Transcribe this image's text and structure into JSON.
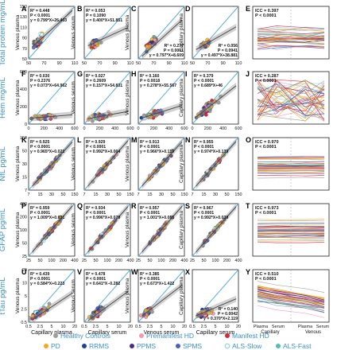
{
  "figure": {
    "row_labels": [
      "Total protein mg/mL",
      "Hem mg/mL",
      "NfL pg/mL",
      "GFAP pg/mL",
      "tTau pg/mL"
    ],
    "profile_axis": {
      "groups": [
        "Capillary",
        "Venous"
      ],
      "ticks": [
        "Plasma",
        "Serum",
        "Plasma",
        "Serum"
      ]
    },
    "legend_row1": [
      {
        "label": "Healthy Controls",
        "color": "#9e9e9e",
        "style": "dot"
      },
      {
        "label": "Premanifest HD",
        "color": "#f39ab1",
        "style": "dot"
      },
      {
        "label": "Manifest HD",
        "color": "#d7263d",
        "style": "dot"
      }
    ],
    "legend_row2": [
      {
        "label": "PD",
        "color": "#f5a623",
        "style": "dot"
      },
      {
        "label": "RRMS",
        "color": "#1a3f9c",
        "style": "dot"
      },
      {
        "label": "PPMS",
        "color": "#4b2a86",
        "style": "dot"
      },
      {
        "label": "SPMS",
        "color": "#4a5fc1",
        "style": "dot"
      },
      {
        "label": "ALS-Slow",
        "color": "#8fd3e8",
        "style": "ring"
      },
      {
        "label": "ALS-Fast",
        "color": "#4fc1b0",
        "style": "dot"
      }
    ]
  },
  "chart_data": [
    {
      "panel": "A",
      "type": "scatter",
      "row": 0,
      "col": 0,
      "xlabel": "",
      "ylabel": "Venous plasma",
      "xlim": [
        50,
        150
      ],
      "ylim": [
        50,
        150
      ],
      "xticks": [
        "50",
        "70",
        "90",
        "110"
      ],
      "yticks": [
        "50",
        "70",
        "90",
        "110",
        "130",
        "150"
      ],
      "stats": [
        "R² = 0.448",
        "P < 0.0001",
        "y = 0.799*X+26.403"
      ],
      "stats_pos": "top-left",
      "slope": 0.799,
      "intercept": 26.403,
      "center": [
        72,
        85
      ],
      "spread": [
        9,
        12
      ]
    },
    {
      "panel": "B",
      "type": "scatter",
      "row": 0,
      "col": 1,
      "xlabel": "",
      "ylabel": "Venous serum",
      "xlim": [
        50,
        150
      ],
      "ylim": [
        50,
        150
      ],
      "xticks": [
        "50",
        "70",
        "90",
        "110"
      ],
      "yticks": [],
      "stats": [
        "R² = 0.053",
        "P = 0.1090",
        "y = 0.400*X+51.851"
      ],
      "stats_pos": "top-left",
      "slope": 0.4,
      "intercept": 51.851,
      "center": [
        75,
        80
      ],
      "spread": [
        9,
        9
      ]
    },
    {
      "panel": "C",
      "type": "scatter",
      "row": 0,
      "col": 2,
      "xlabel": "",
      "ylabel": "Venous plasma",
      "xlim": [
        50,
        150
      ],
      "ylim": [
        50,
        150
      ],
      "xticks": [
        "50",
        "70",
        "90",
        "110"
      ],
      "yticks": [],
      "stats": [
        "R² = 0.277",
        "P = 0.0001",
        "y = 0.797*X+8.609"
      ],
      "stats_pos": "bottom-right",
      "slope": 0.797,
      "intercept": 8.609,
      "center": [
        80,
        80
      ],
      "spread": [
        10,
        11
      ]
    },
    {
      "panel": "D",
      "type": "scatter",
      "row": 0,
      "col": 3,
      "xlabel": "",
      "ylabel": "Capillary plasma",
      "xlim": [
        50,
        150
      ],
      "ylim": [
        50,
        150
      ],
      "xticks": [
        "50",
        "70",
        "90",
        "110"
      ],
      "yticks": [],
      "stats": [
        "R² = 0.056",
        "P = 0.0941",
        "y = 0.497*X+38.881"
      ],
      "stats_pos": "bottom-right",
      "slope": 0.497,
      "intercept": 38.881,
      "center": [
        78,
        78
      ],
      "spread": [
        8,
        8
      ]
    },
    {
      "panel": "E",
      "type": "line",
      "row": 0,
      "col": 4,
      "stats": [
        "ICC = 0.397",
        "P < 0.0001"
      ],
      "trend": "flat",
      "spread": 0.28,
      "center": 0.6
    },
    {
      "panel": "F",
      "type": "scatter",
      "row": 1,
      "col": 0,
      "xlabel": "",
      "ylabel": "Venous plasma",
      "xlim": [
        0,
        600
      ],
      "ylim": [
        0,
        600
      ],
      "xticks": [
        "0",
        "200",
        "400",
        "600"
      ],
      "yticks": [
        "0",
        "200",
        "400",
        "600"
      ],
      "stats": [
        "R² = 0.030",
        "P = 0.2376",
        "y = 0.073*X+64.962"
      ],
      "stats_pos": "top-left",
      "slope": 0.073,
      "intercept": 64.962,
      "center": [
        220,
        80
      ],
      "spread": [
        130,
        40
      ]
    },
    {
      "panel": "G",
      "type": "scatter",
      "row": 1,
      "col": 1,
      "xlabel": "",
      "ylabel": "Venous serum",
      "xlim": [
        0,
        600
      ],
      "ylim": [
        0,
        600
      ],
      "xticks": [
        "0",
        "200",
        "400",
        "600"
      ],
      "yticks": [],
      "stats": [
        "R² = 0.027",
        "P = 0.2609",
        "y = 0.157*X+54.831"
      ],
      "stats_pos": "top-left",
      "slope": 0.157,
      "intercept": 54.831,
      "center": [
        220,
        90
      ],
      "spread": [
        130,
        50
      ]
    },
    {
      "panel": "H",
      "type": "scatter",
      "row": 1,
      "col": 2,
      "xlabel": "",
      "ylabel": "Venous plasma",
      "xlim": [
        0,
        600
      ],
      "ylim": [
        0,
        600
      ],
      "xticks": [
        "0",
        "200",
        "400",
        "600"
      ],
      "yticks": [],
      "stats": [
        "R² = 0.160",
        "P = 0.0018",
        "y = 0.278*X+55.567"
      ],
      "stats_pos": "top-left",
      "slope": 0.278,
      "intercept": 55.567,
      "center": [
        200,
        110
      ],
      "spread": [
        110,
        50
      ]
    },
    {
      "panel": "I",
      "type": "scatter",
      "row": 1,
      "col": 3,
      "xlabel": "",
      "ylabel": "Capillary plasma",
      "xlim": [
        0,
        600
      ],
      "ylim": [
        0,
        600
      ],
      "xticks": [
        "0",
        "200",
        "400",
        "600"
      ],
      "yticks": [],
      "stats": [
        "R² = 0.379",
        "P < 0.0001",
        "y = 0.689*X+46"
      ],
      "stats_pos": "top-left",
      "slope": 0.689,
      "intercept": 46,
      "center": [
        200,
        180
      ],
      "spread": [
        110,
        80
      ]
    },
    {
      "panel": "J",
      "type": "line",
      "row": 1,
      "col": 4,
      "stats": [
        "ICC = 0.287",
        "P < 0.0001"
      ],
      "trend": "mixed",
      "spread": 0.4,
      "center": 0.45
    },
    {
      "panel": "K",
      "type": "scatter",
      "row": 2,
      "col": 0,
      "xlabel": "",
      "ylabel": "Venous plasma",
      "xlim": [
        0,
        150
      ],
      "ylim": [
        0,
        150
      ],
      "xticks": [
        "7",
        "15",
        "30",
        "50",
        "150"
      ],
      "yticks": [
        "7",
        "15",
        "30",
        "50",
        "150"
      ],
      "stats": [
        "R² = 0.925",
        "P < 0.0001",
        "y = 0.965*X+0.021"
      ],
      "stats_pos": "top-left",
      "slope": 0.965,
      "intercept": 0.021,
      "center": [
        65,
        65
      ],
      "spread": [
        35,
        35
      ]
    },
    {
      "panel": "L",
      "type": "scatter",
      "row": 2,
      "col": 1,
      "xlabel": "",
      "ylabel": "Venous serum",
      "xlim": [
        0,
        150
      ],
      "ylim": [
        0,
        150
      ],
      "xticks": [
        "7",
        "15",
        "30",
        "50",
        "150"
      ],
      "yticks": [],
      "stats": [
        "R² = 0.929",
        "P < 0.0001",
        "y = 0.992*X+0.004"
      ],
      "stats_pos": "top-left",
      "slope": 0.992,
      "intercept": 0.004,
      "center": [
        65,
        65
      ],
      "spread": [
        35,
        35
      ]
    },
    {
      "panel": "M",
      "type": "scatter",
      "row": 2,
      "col": 2,
      "xlabel": "",
      "ylabel": "Venous plasma",
      "xlim": [
        0,
        150
      ],
      "ylim": [
        0,
        150
      ],
      "xticks": [
        "7",
        "15",
        "30",
        "50",
        "150"
      ],
      "yticks": [],
      "stats": [
        "R² = 0.913",
        "P < 0.0001",
        "y = 0.966*X+0.119"
      ],
      "stats_pos": "top-left",
      "slope": 0.966,
      "intercept": 0.119,
      "center": [
        65,
        65
      ],
      "spread": [
        35,
        35
      ]
    },
    {
      "panel": "N",
      "type": "scatter",
      "row": 2,
      "col": 3,
      "xlabel": "",
      "ylabel": "Capillary plasma",
      "xlim": [
        0,
        150
      ],
      "ylim": [
        0,
        150
      ],
      "xticks": [
        "7",
        "15",
        "30",
        "50",
        "150"
      ],
      "yticks": [],
      "stats": [
        "R² = 0.955",
        "P < 0.0001",
        "y = 0.974*X+0.139"
      ],
      "stats_pos": "top-left",
      "slope": 0.974,
      "intercept": 0.139,
      "center": [
        65,
        65
      ],
      "spread": [
        35,
        35
      ]
    },
    {
      "panel": "O",
      "type": "line",
      "row": 2,
      "col": 4,
      "stats": [
        "ICC = 0.970",
        "P < 0.0001"
      ],
      "trend": "parallel",
      "spread": 0.32,
      "center": 0.55
    },
    {
      "panel": "P",
      "type": "scatter",
      "row": 3,
      "col": 0,
      "xlabel": "",
      "ylabel": "Venous plasma",
      "xlim": [
        0,
        400
      ],
      "ylim": [
        0,
        400
      ],
      "xticks": [
        "25",
        "50",
        "100",
        "200",
        "400"
      ],
      "yticks": [
        "25",
        "50",
        "100",
        "200",
        "400"
      ],
      "stats": [
        "R² = 0.959",
        "P < 0.0001",
        "y = 1.009*X+0.031"
      ],
      "stats_pos": "top-left",
      "slope": 1.009,
      "intercept": 0.031,
      "center": [
        180,
        180
      ],
      "spread": [
        90,
        90
      ]
    },
    {
      "panel": "Q",
      "type": "scatter",
      "row": 3,
      "col": 1,
      "xlabel": "",
      "ylabel": "Venous serum",
      "xlim": [
        0,
        400
      ],
      "ylim": [
        0,
        400
      ],
      "xticks": [
        "25",
        "50",
        "100",
        "200",
        "400"
      ],
      "yticks": [],
      "stats": [
        "R² = 0.934",
        "P < 0.0001",
        "y = 0.996*X+0.079"
      ],
      "stats_pos": "top-left",
      "slope": 0.996,
      "intercept": 0.079,
      "center": [
        180,
        180
      ],
      "spread": [
        90,
        90
      ]
    },
    {
      "panel": "R",
      "type": "scatter",
      "row": 3,
      "col": 2,
      "xlabel": "",
      "ylabel": "Venous plasma",
      "xlim": [
        0,
        400
      ],
      "ylim": [
        0,
        400
      ],
      "xticks": [
        "25",
        "50",
        "100",
        "200",
        "400"
      ],
      "yticks": [],
      "stats": [
        "R² = 0.957",
        "P < 0.0001",
        "y = 1.001*X+0.055"
      ],
      "stats_pos": "top-left",
      "slope": 1.001,
      "intercept": 0.055,
      "center": [
        180,
        180
      ],
      "spread": [
        90,
        90
      ]
    },
    {
      "panel": "S",
      "type": "scatter",
      "row": 3,
      "col": 3,
      "xlabel": "",
      "ylabel": "Capillary plasma",
      "xlim": [
        0,
        400
      ],
      "ylim": [
        0,
        400
      ],
      "xticks": [
        "25",
        "50",
        "100",
        "200",
        "400"
      ],
      "yticks": [],
      "stats": [
        "R² = 0.967",
        "P < 0.0001",
        "y = 0.992*X+0.039"
      ],
      "stats_pos": "top-left",
      "slope": 0.992,
      "intercept": 0.039,
      "center": [
        180,
        180
      ],
      "spread": [
        90,
        90
      ]
    },
    {
      "panel": "T",
      "type": "line",
      "row": 3,
      "col": 4,
      "stats": [
        "ICC = 0.973",
        "P < 0.0001"
      ],
      "trend": "parallel",
      "spread": 0.32,
      "center": 0.55
    },
    {
      "panel": "U",
      "type": "scatter",
      "row": 4,
      "col": 0,
      "xlabel": "Capillary plasma",
      "ylabel": "Venous plasma",
      "xlim": [
        0.5,
        20
      ],
      "ylim": [
        0.5,
        20
      ],
      "xticks": [
        "0.5",
        "2.5",
        "5",
        "10",
        "20"
      ],
      "yticks": [
        "0.5",
        "2.5",
        "5",
        "10",
        "20"
      ],
      "stats": [
        "R² = 0.439",
        "P < 0.0001",
        "y = 0.584*X+0.223"
      ],
      "stats_pos": "top-left",
      "slope": 0.584,
      "intercept": 0.223,
      "center": [
        5,
        4
      ],
      "spread": [
        3,
        2
      ]
    },
    {
      "panel": "V",
      "type": "scatter",
      "row": 4,
      "col": 1,
      "xlabel": "Capillary serum",
      "ylabel": "Venous serum",
      "xlim": [
        0.5,
        20
      ],
      "ylim": [
        0.5,
        20
      ],
      "xticks": [
        "0.5",
        "2.5",
        "5",
        "10",
        "20"
      ],
      "yticks": [],
      "stats": [
        "R² = 0.478",
        "P < 0.0001",
        "y = 0.641*X−0.282"
      ],
      "stats_pos": "top-left",
      "slope": 0.641,
      "intercept": -0.282,
      "center": [
        6,
        4
      ],
      "spread": [
        3,
        2
      ]
    },
    {
      "panel": "W",
      "type": "scatter",
      "row": 4,
      "col": 2,
      "xlabel": "Venous serum",
      "ylabel": "Venous plasma",
      "xlim": [
        0.5,
        20
      ],
      "ylim": [
        0.5,
        20
      ],
      "xticks": [
        "0.5",
        "2.5",
        "5",
        "10",
        "20"
      ],
      "yticks": [],
      "stats": [
        "R² = 0.385",
        "P < 0.0001",
        "y = 0.673*X+1.422"
      ],
      "stats_pos": "top-left",
      "slope": 0.673,
      "intercept": 1.422,
      "center": [
        4,
        4
      ],
      "spread": [
        2,
        2
      ]
    },
    {
      "panel": "X",
      "type": "scatter",
      "row": 4,
      "col": 3,
      "xlabel": "Capillary serum",
      "ylabel": "Capillary plasma",
      "xlim": [
        0.5,
        20
      ],
      "ylim": [
        0.5,
        20
      ],
      "xticks": [
        "0.5",
        "2.5",
        "5",
        "10",
        "20"
      ],
      "yticks": [],
      "stats": [
        "R² = 0.140",
        "P = 0.0042",
        "y = 0.370*X+2.119"
      ],
      "stats_pos": "bottom-right",
      "slope": 0.37,
      "intercept": 2.119,
      "center": [
        6,
        4
      ],
      "spread": [
        3,
        2
      ]
    },
    {
      "panel": "Y",
      "type": "line",
      "row": 4,
      "col": 4,
      "stats": [
        "ICC = 0.510",
        "P < 0.0001"
      ],
      "trend": "down",
      "spread": 0.28,
      "center": 0.45
    }
  ]
}
